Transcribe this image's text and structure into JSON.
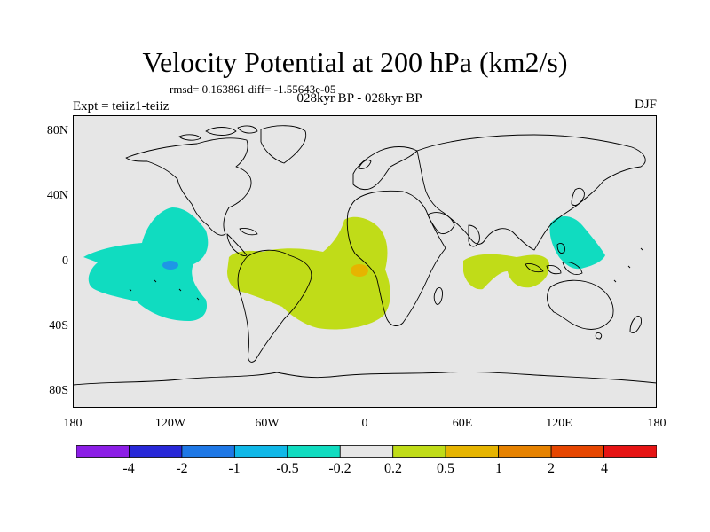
{
  "title": "Velocity Potential at 200 hPa (km2/s)",
  "stats": "rmsd= 0.163861 diff= -1.55643e-05",
  "experiment": "Expt = teiiz1-teiiz",
  "period": "028kyr BP - 028kyr BP",
  "season": "DJF",
  "lat_labels": [
    "80N",
    "40N",
    "0",
    "40S",
    "80S"
  ],
  "lon_labels": [
    "180",
    "120W",
    "60W",
    "0",
    "60E",
    "120E",
    "180"
  ],
  "colorbar": {
    "labels": [
      "-4",
      "-2",
      "-1",
      "-0.5",
      "-0.2",
      "0.2",
      "0.5",
      "1",
      "2",
      "4"
    ],
    "colors": [
      "#8c1ee6",
      "#2828d8",
      "#1e78e6",
      "#10b8e8",
      "#10dcc0",
      "#e6e6e6",
      "#c0dc18",
      "#e6b400",
      "#e68200",
      "#e64600",
      "#e61414"
    ]
  },
  "map_colors": {
    "background": "#e6e6e6",
    "negative": "#10dcc0",
    "negative_strong": "#1e96e6",
    "positive": "#c0dc18",
    "positive_strong": "#e6b400",
    "coast": "#000000"
  }
}
